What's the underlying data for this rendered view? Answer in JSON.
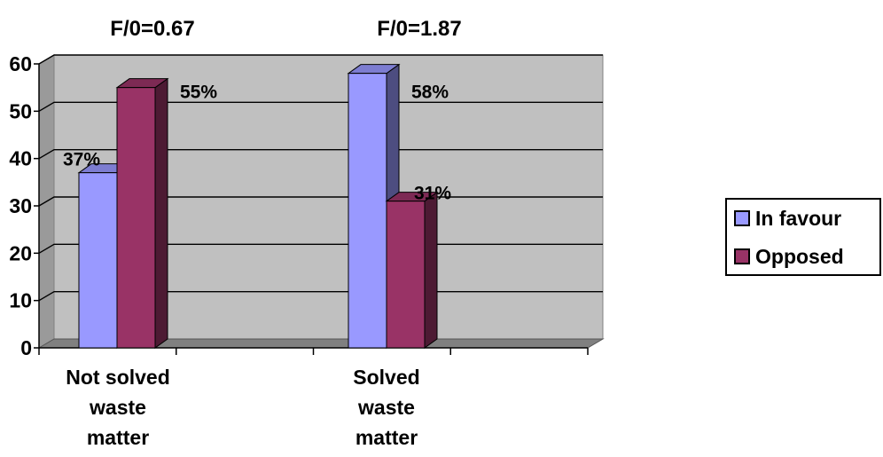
{
  "chart_data": {
    "type": "bar",
    "categories": [
      "Not solved waste matter",
      "Solved waste matter"
    ],
    "category_lines": [
      [
        "Not solved",
        "waste",
        "matter"
      ],
      [
        "Solved",
        "waste",
        "matter"
      ]
    ],
    "series": [
      {
        "name": "In favour",
        "values": [
          37,
          58
        ],
        "data_labels": [
          "37%",
          "58%"
        ],
        "color": "#9999ff"
      },
      {
        "name": "Opposed",
        "values": [
          55,
          31
        ],
        "data_labels": [
          "55%",
          "31%"
        ],
        "color": "#993366"
      }
    ],
    "annotations": [
      "F/0=0.67",
      "F/0=1.87"
    ],
    "ylim": [
      0,
      60
    ],
    "yticks": [
      0,
      10,
      20,
      30,
      40,
      50,
      60
    ],
    "grid": true,
    "legend_position": "right",
    "plot_background": "#c0c0c0",
    "style": "3d-clustered-column"
  }
}
